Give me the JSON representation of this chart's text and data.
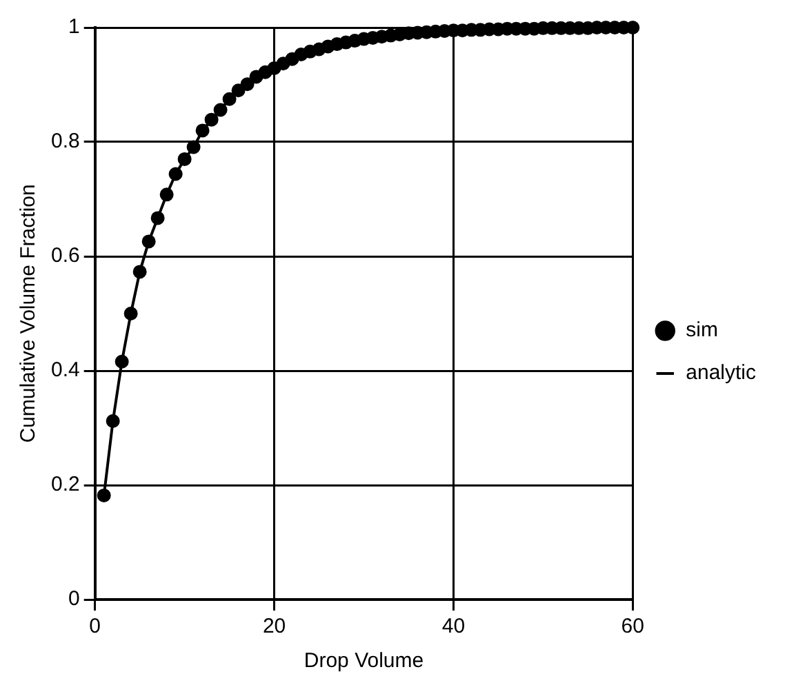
{
  "chart_data": {
    "type": "line",
    "xlabel": "Drop Volume",
    "ylabel": "Cumulative Volume Fraction",
    "xlim": [
      0,
      60
    ],
    "xticks": [
      0,
      20,
      40,
      60
    ],
    "ylim": [
      0,
      1
    ],
    "yticks": [
      0,
      0.2,
      0.4,
      0.6,
      0.8,
      {
        "value": 1,
        "label": "1"
      }
    ],
    "grid": true,
    "legend": "right",
    "series": [
      {
        "name": "sim",
        "type": "scatter",
        "color": "#000000",
        "marker": "circle",
        "x": [
          1,
          2,
          3,
          4,
          5,
          6,
          7,
          8,
          9,
          10,
          11,
          12,
          13,
          14,
          15,
          16,
          17,
          18,
          19,
          20,
          21,
          22,
          23,
          24,
          25,
          26,
          27,
          28,
          29,
          30,
          31,
          32,
          33,
          34,
          35,
          36,
          37,
          38,
          39,
          40,
          41,
          42,
          43,
          44,
          45,
          46,
          47,
          48,
          49,
          50,
          51,
          52,
          53,
          54,
          55,
          56,
          57,
          58,
          59,
          60
        ],
        "values": [
          0.182,
          0.312,
          0.416,
          0.5,
          0.573,
          0.626,
          0.667,
          0.708,
          0.744,
          0.77,
          0.791,
          0.82,
          0.839,
          0.856,
          0.875,
          0.89,
          0.901,
          0.914,
          0.922,
          0.929,
          0.937,
          0.945,
          0.953,
          0.958,
          0.962,
          0.967,
          0.971,
          0.974,
          0.977,
          0.98,
          0.982,
          0.984,
          0.986,
          0.988,
          0.99,
          0.991,
          0.992,
          0.993,
          0.994,
          0.995,
          0.995,
          0.996,
          0.996,
          0.997,
          0.997,
          0.998,
          0.998,
          0.998,
          0.998,
          0.999,
          0.999,
          0.999,
          0.999,
          0.999,
          0.999,
          1,
          1,
          1,
          1,
          1
        ]
      },
      {
        "name": "analytic",
        "color": "#000000",
        "marker": "none",
        "line_style": "solid",
        "x": [
          1,
          2,
          3,
          4,
          5,
          6,
          7,
          8,
          9,
          10,
          11,
          12,
          13,
          14,
          15,
          16,
          17,
          18,
          19,
          20,
          21,
          22,
          23,
          24,
          25,
          26,
          27,
          28,
          29,
          30,
          32,
          34,
          36,
          38,
          40,
          45,
          50,
          55,
          60
        ],
        "values": [
          0.182,
          0.312,
          0.416,
          0.5,
          0.573,
          0.626,
          0.667,
          0.708,
          0.744,
          0.77,
          0.791,
          0.82,
          0.839,
          0.856,
          0.875,
          0.89,
          0.901,
          0.914,
          0.922,
          0.929,
          0.937,
          0.945,
          0.953,
          0.958,
          0.962,
          0.967,
          0.971,
          0.974,
          0.977,
          0.98,
          0.984,
          0.988,
          0.991,
          0.993,
          0.995,
          0.997,
          0.999,
          0.999,
          1
        ]
      }
    ]
  }
}
